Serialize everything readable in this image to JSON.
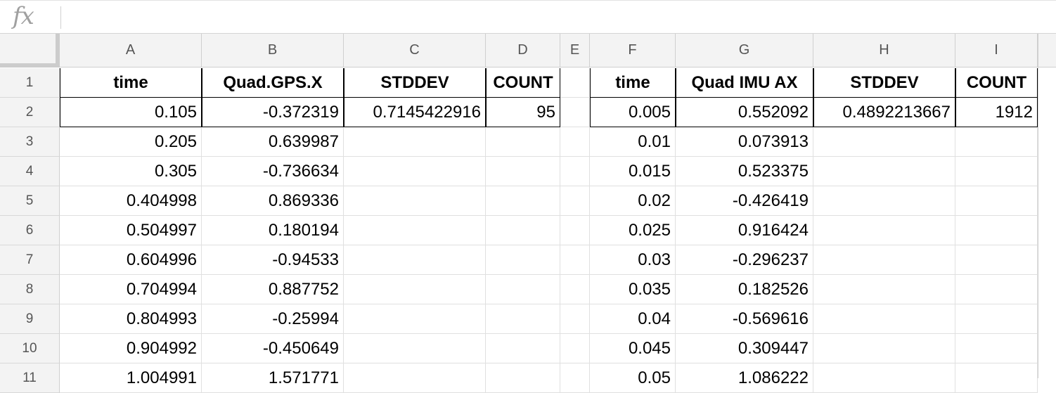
{
  "formula_bar": {
    "fx_label": "fx",
    "value": ""
  },
  "columns": [
    "A",
    "B",
    "C",
    "D",
    "E",
    "F",
    "G",
    "H",
    "I"
  ],
  "rows": [
    "1",
    "2",
    "3",
    "4",
    "5",
    "6",
    "7",
    "8",
    "9",
    "10",
    "11"
  ],
  "cells": [
    [
      "time",
      "Quad.GPS.X",
      "STDDEV",
      "COUNT",
      "",
      "time",
      "Quad IMU AX",
      "STDDEV",
      "COUNT"
    ],
    [
      "0.105",
      "-0.372319",
      "0.7145422916",
      "95",
      "",
      "0.005",
      "0.552092",
      "0.4892213667",
      "1912"
    ],
    [
      "0.205",
      "0.639987",
      "",
      "",
      "",
      "0.01",
      "0.073913",
      "",
      ""
    ],
    [
      "0.305",
      "-0.736634",
      "",
      "",
      "",
      "0.015",
      "0.523375",
      "",
      ""
    ],
    [
      "0.404998",
      "0.869336",
      "",
      "",
      "",
      "0.02",
      "-0.426419",
      "",
      ""
    ],
    [
      "0.504997",
      "0.180194",
      "",
      "",
      "",
      "0.025",
      "0.916424",
      "",
      ""
    ],
    [
      "0.604996",
      "-0.94533",
      "",
      "",
      "",
      "0.03",
      "-0.296237",
      "",
      ""
    ],
    [
      "0.704994",
      "0.887752",
      "",
      "",
      "",
      "0.035",
      "0.182526",
      "",
      ""
    ],
    [
      "0.804993",
      "-0.25994",
      "",
      "",
      "",
      "0.04",
      "-0.569616",
      "",
      ""
    ],
    [
      "0.904992",
      "-0.450649",
      "",
      "",
      "",
      "0.045",
      "0.309447",
      "",
      ""
    ],
    [
      "1.004991",
      "1.571771",
      "",
      "",
      "",
      "0.05",
      "1.086222",
      "",
      ""
    ]
  ]
}
